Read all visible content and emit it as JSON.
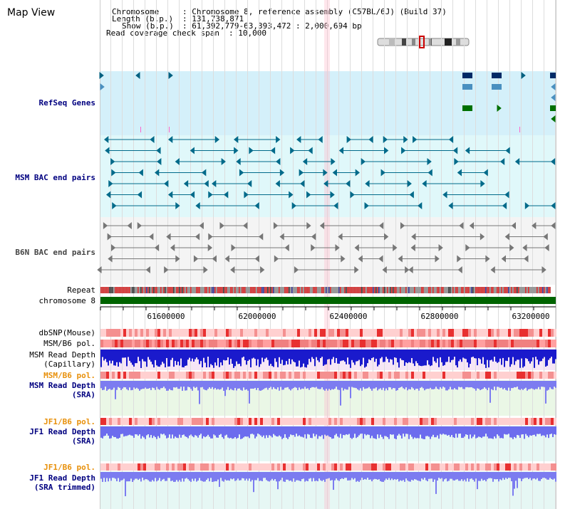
{
  "map_view": {
    "title": "Map View",
    "info": {
      "chromosome_key": "Chromosome",
      "chromosome_value": ": Chromosome 8, reference assembly (C57BL/6J) (Build 37)",
      "length_key": "Length (b.p.)",
      "length_value": ": 131,738,871",
      "show_key": "Show (b.p.)",
      "show_value": ": 61,392,779-63,393,472 : 2,000,694 bp",
      "span_key": "Read coverage check span",
      "span_value": ": 10,000"
    }
  },
  "tracks": {
    "refseq": "RefSeq Genes",
    "msm_bac": "MSM BAC end pairs",
    "b6n_bac": "B6N BAC end pairs",
    "repeat": "Repeat",
    "chromosome": "chromosome 8",
    "dbsnp": "dbSNP(Mouse)",
    "msm_b6_pol": "MSM/B6 pol.",
    "msm_rd_cap_1": "MSM Read Depth",
    "msm_rd_cap_2": "(Capillary)",
    "msm_b6_pol_2": "MSM/B6 pol.",
    "msm_rd_sra_1": "MSM Read Depth",
    "msm_rd_sra_2": "(SRA)",
    "jf1_b6_pol": "JF1/B6 pol.",
    "jf1_rd_sra_1": "JF1 Read Depth",
    "jf1_rd_sra_2": "(SRA)",
    "jf1_b6_pol_2": "JF1/B6 pol.",
    "jf1_rd_trim_1": "JF1 Read Depth",
    "jf1_rd_trim_2": "(SRA trimmed)"
  },
  "axis": {
    "ticks": [
      "61600000",
      "62000000",
      "62400000",
      "62800000",
      "63200000"
    ]
  },
  "colors": {
    "blue_label": "#000080",
    "orange_label": "#e8900a",
    "refseq_bg": "#d4f0fa",
    "msm_bac_bg": "#e0f8fa",
    "b6n_bg": "#f4f4f4",
    "chrom_bar": "#006400",
    "grid": "#cccccc"
  }
}
